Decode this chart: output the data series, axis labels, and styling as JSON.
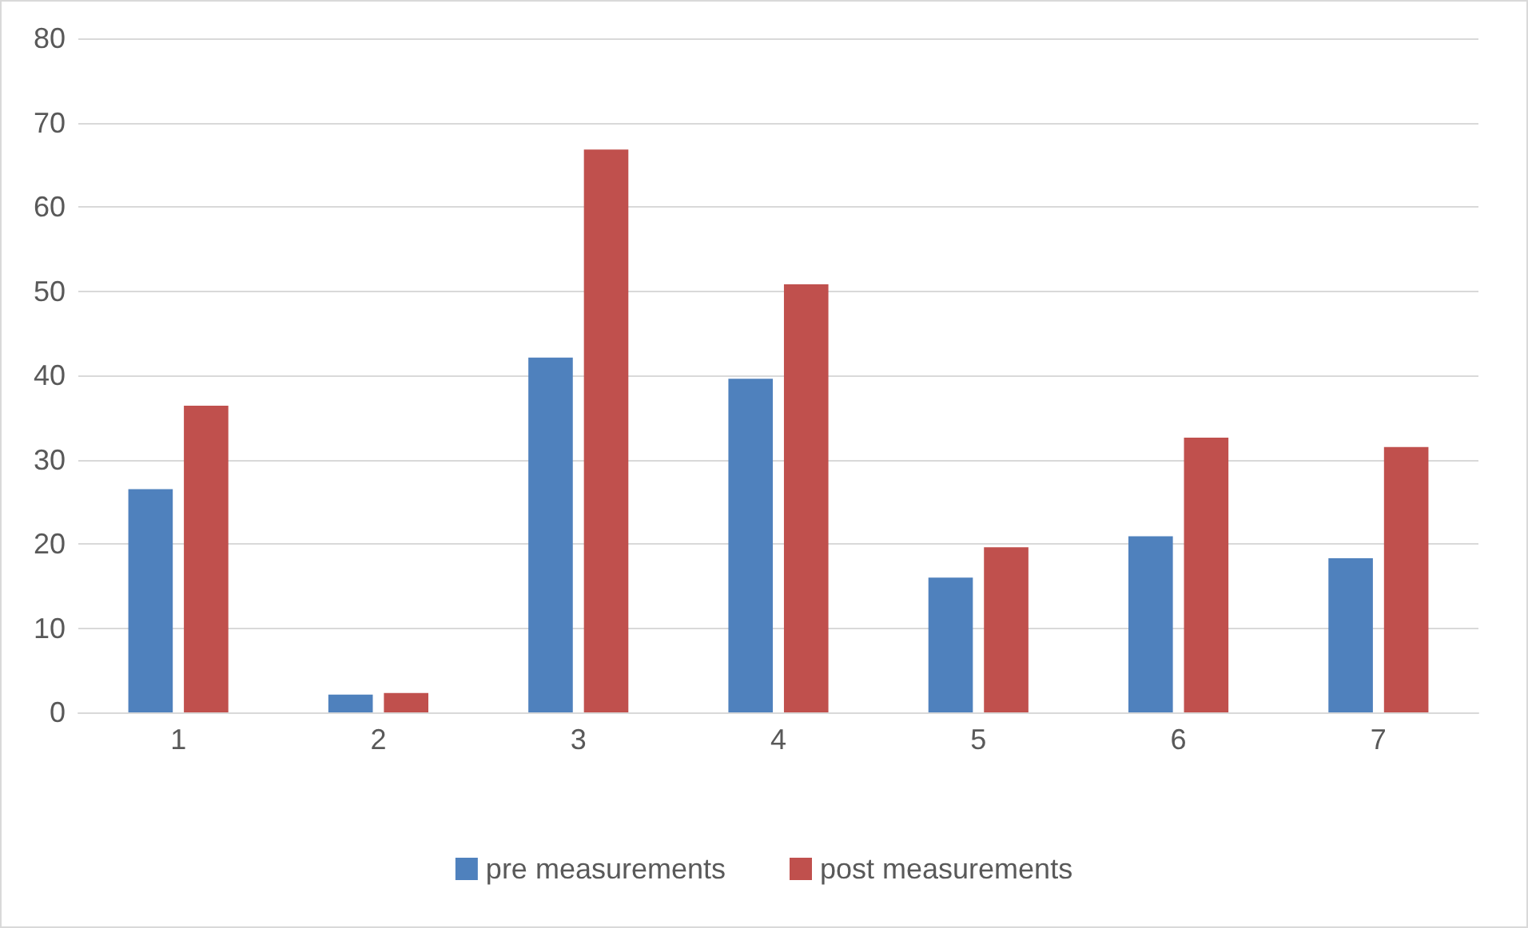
{
  "chart_data": {
    "type": "bar",
    "categories": [
      "1",
      "2",
      "3",
      "4",
      "5",
      "6",
      "7"
    ],
    "series": [
      {
        "name": "pre measurements",
        "color": "#4f81bd",
        "values": [
          26.5,
          2.1,
          42.1,
          39.6,
          16.0,
          20.9,
          18.3
        ]
      },
      {
        "name": "post measurements",
        "color": "#c0504d",
        "values": [
          36.4,
          2.3,
          66.8,
          50.8,
          19.6,
          32.6,
          31.5
        ]
      }
    ],
    "ylim": [
      0,
      80
    ],
    "yticks": [
      0,
      10,
      20,
      30,
      40,
      50,
      60,
      70,
      80
    ],
    "grid": "y",
    "legend": "bottom"
  }
}
